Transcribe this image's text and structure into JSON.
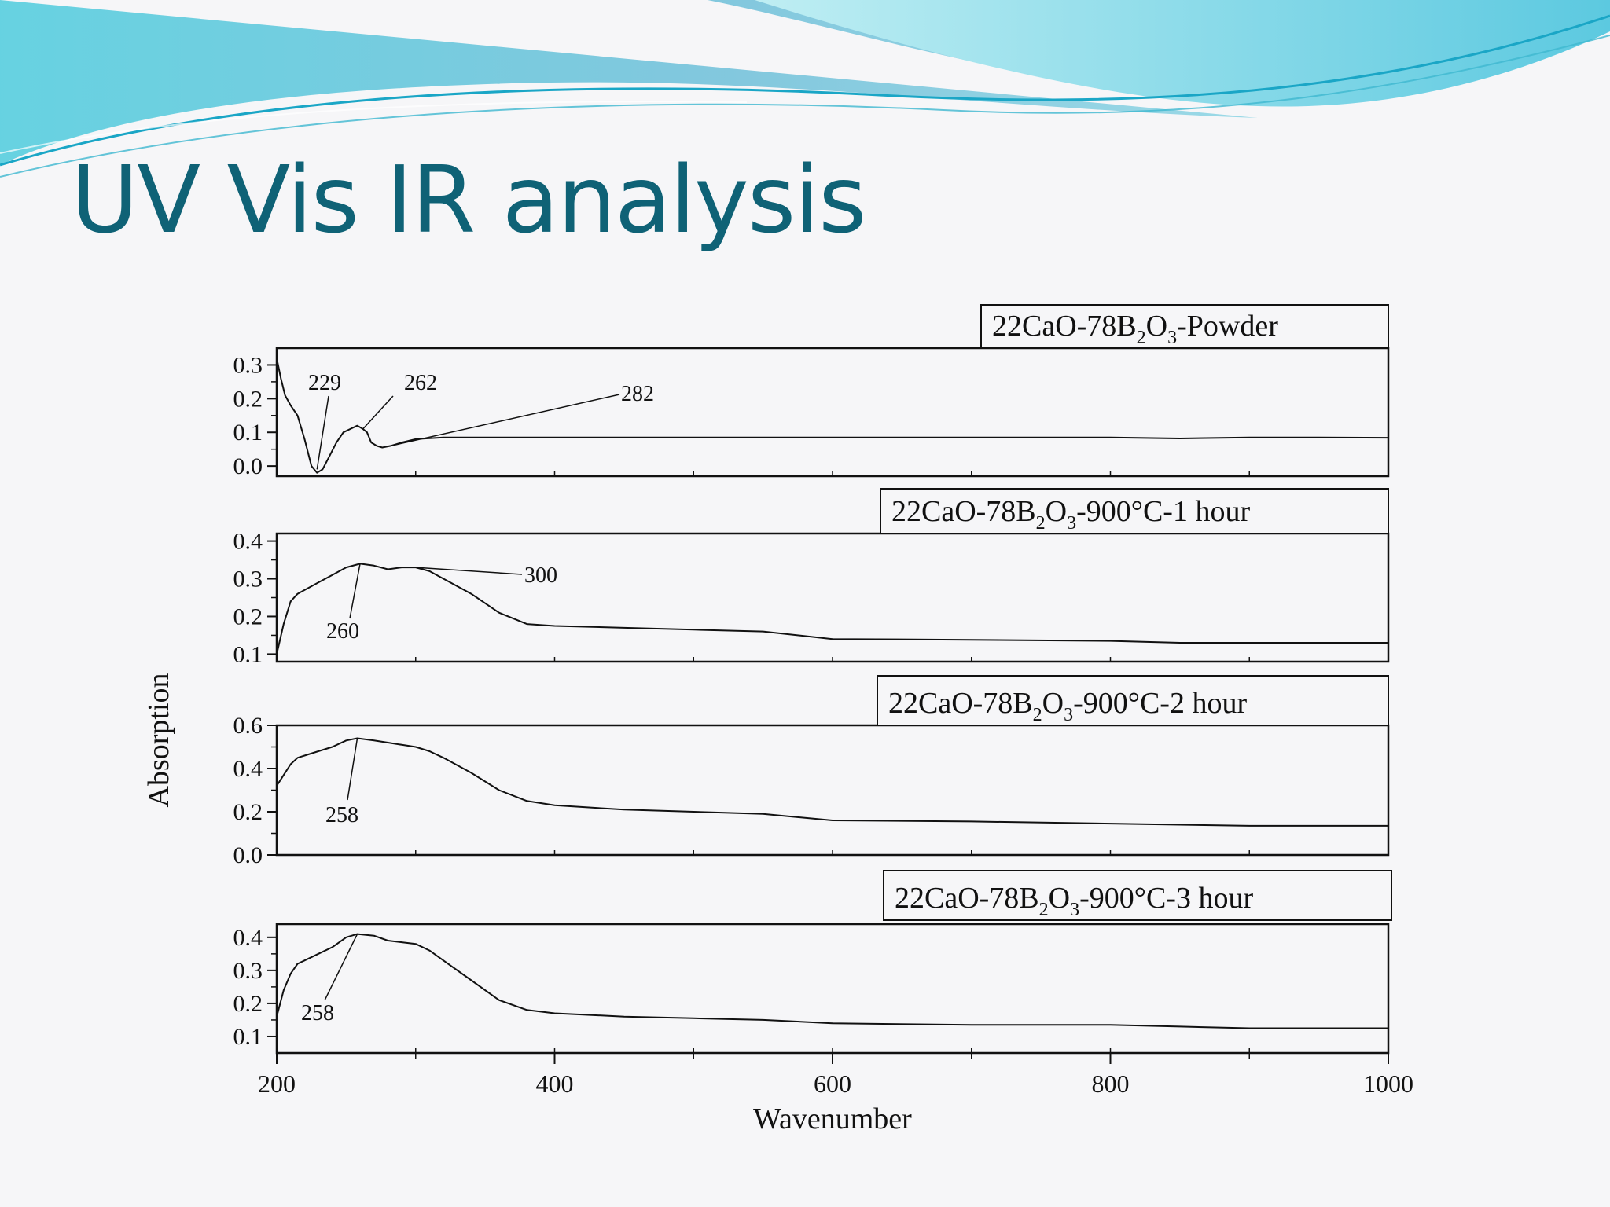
{
  "slide": {
    "title": "UV Vis IR analysis",
    "title_color": "#0f6276",
    "banner_colors": [
      "#5ec8d8",
      "#8dd9e6",
      "#1aa6c6"
    ]
  },
  "chart_data": {
    "type": "line",
    "xlabel": "Wavenumber",
    "ylabel": "Absorption",
    "xlim": [
      200,
      1000
    ],
    "xticks": [
      200,
      400,
      600,
      800,
      1000
    ],
    "line_color": "#111111",
    "panels": [
      {
        "legend": {
          "pre": "22CaO-78B",
          "sub1": "2",
          "mid": "O",
          "sub2": "3",
          "post": "-Powder"
        },
        "ylim": [
          -0.03,
          0.35
        ],
        "yticks": [
          "0.0",
          "0.1",
          "0.2",
          "0.3"
        ],
        "x": [
          200,
          203,
          206,
          210,
          215,
          220,
          225,
          229,
          233,
          238,
          243,
          248,
          253,
          258,
          262,
          265,
          268,
          272,
          276,
          282,
          290,
          300,
          320,
          350,
          400,
          500,
          600,
          700,
          800,
          850,
          900,
          950,
          1000
        ],
        "y": [
          0.32,
          0.26,
          0.21,
          0.18,
          0.15,
          0.08,
          0.0,
          -0.02,
          -0.01,
          0.03,
          0.07,
          0.1,
          0.11,
          0.12,
          0.11,
          0.1,
          0.07,
          0.06,
          0.055,
          0.06,
          0.07,
          0.08,
          0.085,
          0.085,
          0.085,
          0.085,
          0.085,
          0.085,
          0.085,
          0.082,
          0.085,
          0.085,
          0.084
        ],
        "annotations": [
          {
            "label": "229",
            "x": 229,
            "y": -0.01
          },
          {
            "label": "262",
            "x": 262,
            "y": 0.11
          },
          {
            "label": "282",
            "x": 282,
            "y": 0.06
          }
        ]
      },
      {
        "legend": {
          "pre": "22CaO-78B",
          "sub1": "2",
          "mid": "O",
          "sub2": "3",
          "post": "-900°C-1 hour"
        },
        "ylim": [
          0.08,
          0.42
        ],
        "yticks": [
          "0.1",
          "0.2",
          "0.3",
          "0.4"
        ],
        "x": [
          200,
          205,
          210,
          215,
          220,
          230,
          240,
          250,
          260,
          270,
          280,
          290,
          300,
          310,
          320,
          340,
          360,
          380,
          400,
          450,
          500,
          550,
          600,
          700,
          800,
          850,
          900,
          950,
          1000
        ],
        "y": [
          0.1,
          0.18,
          0.24,
          0.26,
          0.27,
          0.29,
          0.31,
          0.33,
          0.34,
          0.335,
          0.325,
          0.33,
          0.33,
          0.32,
          0.3,
          0.26,
          0.21,
          0.18,
          0.175,
          0.17,
          0.165,
          0.16,
          0.14,
          0.138,
          0.135,
          0.13,
          0.13,
          0.13,
          0.13
        ],
        "annotations": [
          {
            "label": "260",
            "x": 260,
            "y": 0.34
          },
          {
            "label": "300",
            "x": 300,
            "y": 0.33
          }
        ]
      },
      {
        "legend": {
          "pre": "22CaO-78B",
          "sub1": "2",
          "mid": "O",
          "sub2": "3",
          "post": "-900°C-2 hour"
        },
        "ylim": [
          0.0,
          0.6
        ],
        "yticks": [
          "0.0",
          "0.2",
          "0.4",
          "0.6"
        ],
        "x": [
          200,
          205,
          210,
          215,
          220,
          230,
          240,
          250,
          258,
          270,
          280,
          290,
          300,
          310,
          320,
          340,
          360,
          380,
          400,
          450,
          500,
          550,
          600,
          700,
          800,
          850,
          900,
          950,
          1000
        ],
        "y": [
          0.32,
          0.37,
          0.42,
          0.45,
          0.46,
          0.48,
          0.5,
          0.53,
          0.54,
          0.53,
          0.52,
          0.51,
          0.5,
          0.48,
          0.45,
          0.38,
          0.3,
          0.25,
          0.23,
          0.21,
          0.2,
          0.19,
          0.16,
          0.155,
          0.145,
          0.14,
          0.135,
          0.135,
          0.135
        ],
        "annotations": [
          {
            "label": "258",
            "x": 258,
            "y": 0.54
          }
        ]
      },
      {
        "legend": {
          "pre": "22CaO-78B",
          "sub1": "2",
          "mid": "O",
          "sub2": "3",
          "post": "-900°C-3 hour"
        },
        "ylim": [
          0.05,
          0.44
        ],
        "yticks": [
          "0.1",
          "0.2",
          "0.3",
          "0.4"
        ],
        "x": [
          200,
          205,
          210,
          215,
          220,
          230,
          240,
          250,
          258,
          270,
          280,
          290,
          300,
          310,
          320,
          340,
          360,
          380,
          400,
          450,
          500,
          550,
          600,
          700,
          800,
          850,
          900,
          950,
          1000
        ],
        "y": [
          0.16,
          0.24,
          0.29,
          0.32,
          0.33,
          0.35,
          0.37,
          0.4,
          0.41,
          0.405,
          0.39,
          0.385,
          0.38,
          0.36,
          0.33,
          0.27,
          0.21,
          0.18,
          0.17,
          0.16,
          0.155,
          0.15,
          0.14,
          0.135,
          0.135,
          0.13,
          0.125,
          0.125,
          0.125
        ],
        "annotations": [
          {
            "label": "258",
            "x": 258,
            "y": 0.41
          }
        ]
      }
    ]
  }
}
